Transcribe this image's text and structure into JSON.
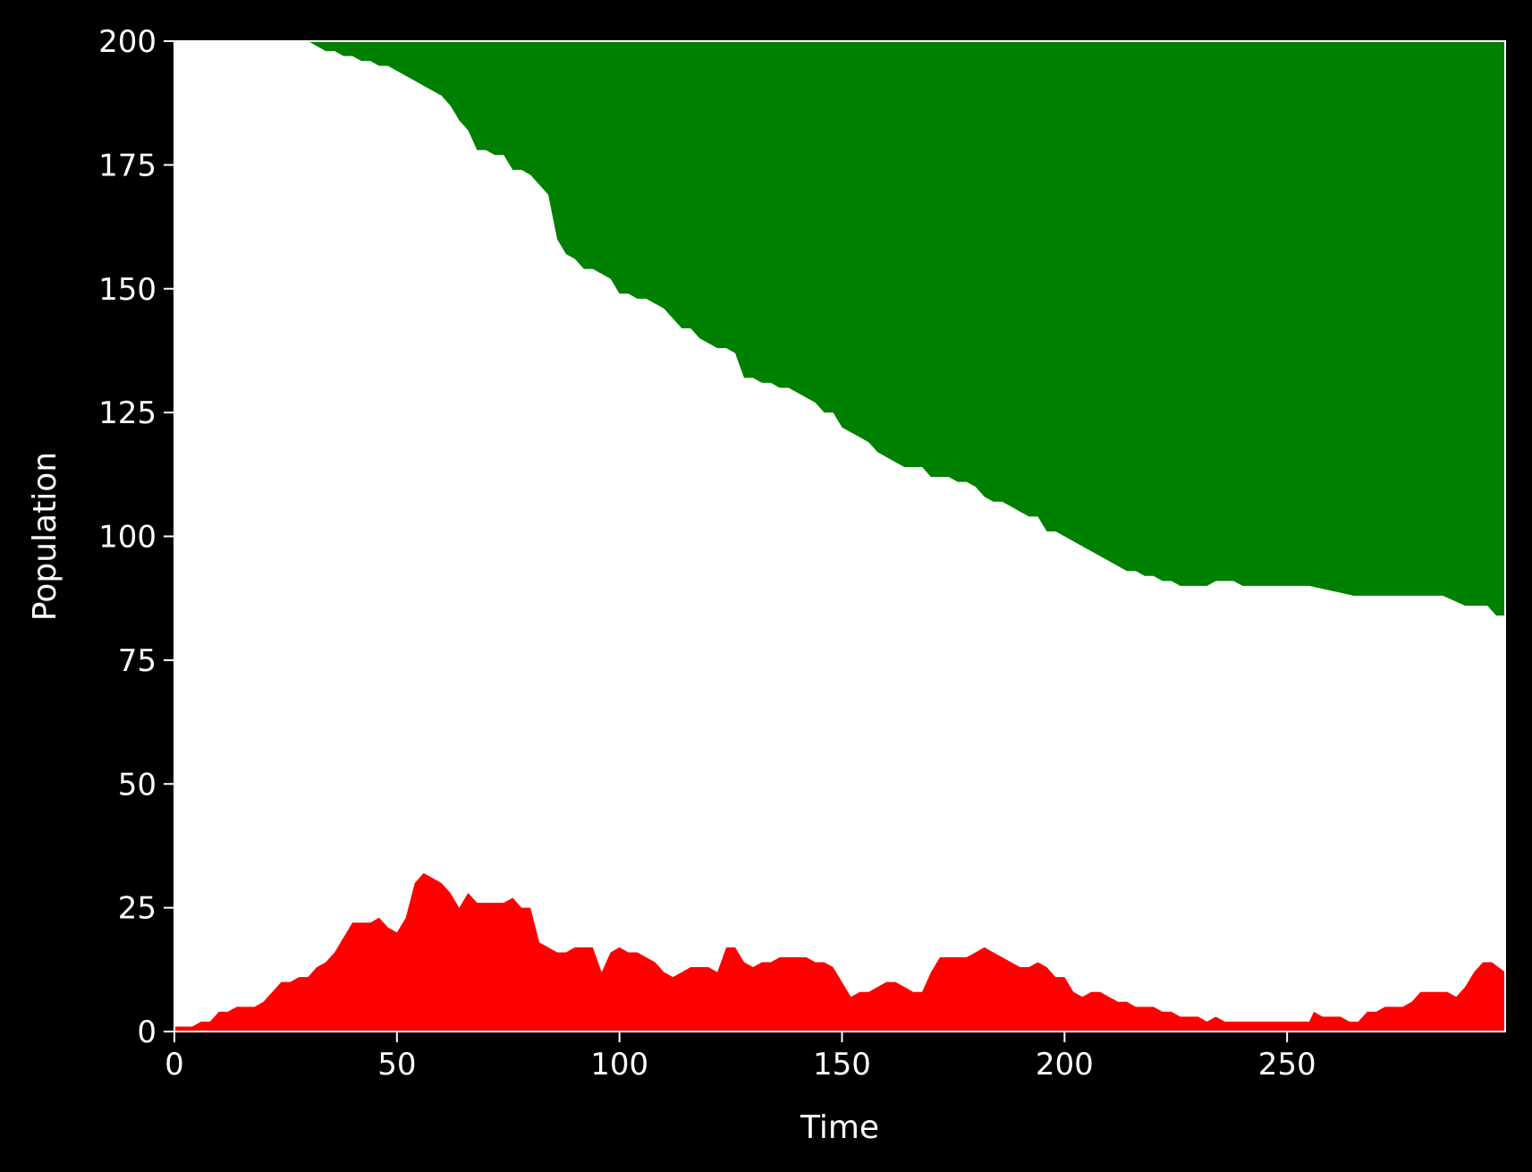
{
  "chart_data": {
    "type": "area",
    "title": "",
    "xlabel": "Time",
    "ylabel": "Population",
    "xlim": [
      0,
      299
    ],
    "ylim": [
      0,
      200
    ],
    "xticks": [
      0,
      50,
      100,
      150,
      200,
      250
    ],
    "yticks": [
      0,
      25,
      50,
      75,
      100,
      125,
      150,
      175,
      200
    ],
    "grid": false,
    "legend": "none",
    "background_color": "#000000",
    "plot_background_color": "#ffffff",
    "stacking": "bottom: infected (from 0), middle: susceptible (white), top: recovered (stacked to 200 total)",
    "series": [
      {
        "role": "infected",
        "color": "#ff0000",
        "x": [
          0,
          4,
          6,
          8,
          10,
          12,
          14,
          16,
          18,
          20,
          22,
          24,
          26,
          28,
          30,
          32,
          34,
          36,
          38,
          40,
          42,
          44,
          46,
          48,
          50,
          52,
          54,
          56,
          58,
          60,
          62,
          64,
          66,
          68,
          70,
          72,
          74,
          76,
          78,
          80,
          82,
          84,
          86,
          88,
          90,
          92,
          94,
          96,
          98,
          100,
          102,
          104,
          106,
          108,
          110,
          112,
          114,
          116,
          118,
          120,
          122,
          124,
          126,
          128,
          130,
          132,
          134,
          136,
          138,
          140,
          142,
          144,
          146,
          148,
          150,
          152,
          154,
          156,
          158,
          160,
          162,
          164,
          166,
          168,
          170,
          172,
          174,
          176,
          178,
          180,
          182,
          184,
          186,
          188,
          190,
          192,
          194,
          196,
          198,
          200,
          202,
          204,
          206,
          208,
          210,
          212,
          214,
          216,
          218,
          220,
          222,
          224,
          226,
          228,
          230,
          232,
          234,
          236,
          238,
          240,
          245,
          250,
          255,
          256,
          258,
          262,
          264,
          266,
          268,
          270,
          272,
          274,
          276,
          278,
          280,
          282,
          284,
          286,
          288,
          290,
          292,
          294,
          296,
          299
        ],
        "values": [
          1,
          1,
          2,
          2,
          4,
          4,
          5,
          5,
          5,
          6,
          8,
          10,
          10,
          11,
          11,
          13,
          14,
          16,
          19,
          22,
          22,
          22,
          23,
          21,
          20,
          23,
          30,
          32,
          31,
          30,
          28,
          25,
          28,
          26,
          26,
          26,
          26,
          27,
          25,
          25,
          18,
          17,
          16,
          16,
          17,
          17,
          17,
          12,
          16,
          17,
          16,
          16,
          15,
          14,
          12,
          11,
          12,
          13,
          13,
          13,
          12,
          17,
          17,
          14,
          13,
          14,
          14,
          15,
          15,
          15,
          15,
          14,
          14,
          13,
          10,
          7,
          8,
          8,
          9,
          10,
          10,
          9,
          8,
          8,
          12,
          15,
          15,
          15,
          15,
          16,
          17,
          16,
          15,
          14,
          13,
          13,
          14,
          13,
          11,
          11,
          8,
          7,
          8,
          8,
          7,
          6,
          6,
          5,
          5,
          5,
          4,
          4,
          3,
          3,
          3,
          2,
          3,
          2,
          2,
          2,
          2,
          2,
          2,
          4,
          3,
          3,
          2,
          2,
          4,
          4,
          5,
          5,
          5,
          6,
          8,
          8,
          8,
          8,
          7,
          9,
          12,
          14,
          14,
          12
        ],
        "fill_from": 0
      },
      {
        "role": "recovered",
        "color": "#008000",
        "x": [
          0,
          25,
          28,
          30,
          32,
          34,
          36,
          38,
          40,
          42,
          44,
          46,
          48,
          50,
          52,
          54,
          56,
          58,
          60,
          62,
          64,
          66,
          68,
          70,
          72,
          74,
          76,
          78,
          80,
          82,
          84,
          86,
          88,
          90,
          92,
          94,
          96,
          98,
          100,
          102,
          104,
          106,
          108,
          110,
          112,
          114,
          116,
          118,
          120,
          122,
          124,
          126,
          128,
          130,
          132,
          134,
          136,
          138,
          140,
          142,
          144,
          146,
          148,
          150,
          152,
          154,
          156,
          158,
          160,
          162,
          164,
          166,
          168,
          170,
          172,
          174,
          176,
          178,
          180,
          182,
          184,
          186,
          188,
          190,
          192,
          194,
          196,
          198,
          200,
          202,
          204,
          206,
          208,
          210,
          212,
          214,
          216,
          218,
          220,
          222,
          224,
          226,
          228,
          230,
          232,
          234,
          236,
          238,
          240,
          245,
          250,
          255,
          260,
          265,
          270,
          275,
          280,
          285,
          290,
          295,
          297,
          299
        ],
        "values": [
          0,
          0,
          0,
          0,
          1,
          2,
          2,
          3,
          3,
          4,
          4,
          5,
          5,
          6,
          7,
          8,
          9,
          10,
          11,
          13,
          16,
          18,
          22,
          22,
          23,
          23,
          26,
          26,
          27,
          29,
          31,
          40,
          43,
          44,
          46,
          46,
          47,
          48,
          51,
          51,
          52,
          52,
          53,
          54,
          56,
          58,
          58,
          60,
          61,
          62,
          62,
          63,
          68,
          68,
          69,
          69,
          70,
          70,
          71,
          72,
          73,
          75,
          75,
          78,
          79,
          80,
          81,
          83,
          84,
          85,
          86,
          86,
          86,
          88,
          88,
          88,
          89,
          89,
          90,
          92,
          93,
          93,
          94,
          95,
          96,
          96,
          99,
          99,
          100,
          101,
          102,
          103,
          104,
          105,
          106,
          107,
          107,
          108,
          108,
          109,
          109,
          110,
          110,
          110,
          110,
          109,
          109,
          109,
          110,
          110,
          110,
          110,
          111,
          112,
          112,
          112,
          112,
          112,
          114,
          114,
          116,
          116
        ],
        "fill_to": 200
      }
    ]
  }
}
